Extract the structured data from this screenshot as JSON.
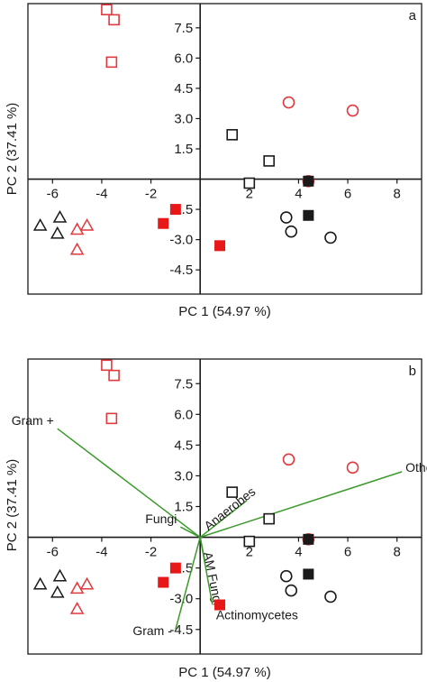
{
  "chart_data": [
    {
      "type": "scatter",
      "panel_label": "a",
      "xlabel": "PC 1 (54.97 %)",
      "ylabel": "PC 2 (37.41 %)",
      "xlim": [
        -7.0,
        9.0
      ],
      "ylim": [
        -5.7,
        8.7
      ],
      "xticks": [
        -6,
        -4,
        -2,
        2,
        4,
        6,
        8
      ],
      "yticks": [
        7.5,
        6.0,
        4.5,
        3.0,
        1.5,
        -1.5,
        -3.0,
        -4.5
      ],
      "xtick_labels": [
        "-6",
        "-4",
        "-2",
        "2",
        "4",
        "6",
        "8"
      ],
      "ytick_labels": [
        "7.5",
        "6.0",
        "4.5",
        "3.0",
        "1.5",
        "-1.5",
        "-3.0",
        "-4.5"
      ],
      "grid": false,
      "series": [
        {
          "marker": "square-open",
          "color": "#e0393e",
          "points": [
            [
              -3.8,
              8.4
            ],
            [
              -3.5,
              7.9
            ],
            [
              -3.6,
              5.8
            ]
          ]
        },
        {
          "marker": "circle-open",
          "color": "#e0393e",
          "points": [
            [
              3.6,
              3.8
            ],
            [
              6.2,
              3.4
            ],
            [
              4.4,
              -0.1
            ]
          ]
        },
        {
          "marker": "square-open",
          "color": "#1a1a1a",
          "points": [
            [
              1.3,
              2.2
            ],
            [
              2.8,
              0.9
            ],
            [
              2.0,
              -0.2
            ]
          ]
        },
        {
          "marker": "square-filled",
          "color": "#1a1a1a",
          "points": [
            [
              4.4,
              -0.1
            ],
            [
              4.4,
              -1.8
            ]
          ]
        },
        {
          "marker": "square-filled",
          "color": "#e81818",
          "points": [
            [
              -1.0,
              -1.5
            ],
            [
              -1.5,
              -2.2
            ],
            [
              0.8,
              -3.3
            ]
          ]
        },
        {
          "marker": "circle-open",
          "color": "#1a1a1a",
          "points": [
            [
              3.5,
              -1.9
            ],
            [
              3.7,
              -2.6
            ],
            [
              5.3,
              -2.9
            ]
          ]
        },
        {
          "marker": "triangle-open",
          "color": "#1a1a1a",
          "points": [
            [
              -6.5,
              -2.3
            ],
            [
              -5.7,
              -1.9
            ],
            [
              -5.8,
              -2.7
            ]
          ]
        },
        {
          "marker": "triangle-open",
          "color": "#e0393e",
          "points": [
            [
              -5.0,
              -2.5
            ],
            [
              -4.6,
              -2.3
            ],
            [
              -5.0,
              -3.5
            ]
          ]
        }
      ]
    },
    {
      "type": "scatter",
      "panel_label": "b",
      "xlabel": "PC 1 (54.97 %)",
      "ylabel": "PC 2 (37.41 %)",
      "xlim": [
        -7.0,
        9.0
      ],
      "ylim": [
        -5.7,
        8.7
      ],
      "xticks": [
        -6,
        -4,
        -2,
        2,
        4,
        6,
        8
      ],
      "yticks": [
        7.5,
        6.0,
        4.5,
        3.0,
        1.5,
        -1.5,
        -3.0,
        -4.5
      ],
      "xtick_labels": [
        "-6",
        "-4",
        "-2",
        "2",
        "4",
        "6",
        "8"
      ],
      "ytick_labels": [
        "7.5",
        "6.0",
        "4.5",
        "3.0",
        "1.5",
        "-1.5",
        "-3.0",
        "-4.5"
      ],
      "grid": false,
      "series": [
        {
          "marker": "square-open",
          "color": "#e0393e",
          "points": [
            [
              -3.8,
              8.4
            ],
            [
              -3.5,
              7.9
            ],
            [
              -3.6,
              5.8
            ]
          ]
        },
        {
          "marker": "circle-open",
          "color": "#e0393e",
          "points": [
            [
              3.6,
              3.8
            ],
            [
              6.2,
              3.4
            ],
            [
              4.4,
              -0.1
            ]
          ]
        },
        {
          "marker": "square-open",
          "color": "#1a1a1a",
          "points": [
            [
              1.3,
              2.2
            ],
            [
              2.8,
              0.9
            ],
            [
              2.0,
              -0.2
            ]
          ]
        },
        {
          "marker": "square-filled",
          "color": "#1a1a1a",
          "points": [
            [
              4.4,
              -0.1
            ],
            [
              4.4,
              -1.8
            ]
          ]
        },
        {
          "marker": "square-filled",
          "color": "#e81818",
          "points": [
            [
              -1.0,
              -1.5
            ],
            [
              -1.5,
              -2.2
            ],
            [
              0.8,
              -3.3
            ]
          ]
        },
        {
          "marker": "circle-open",
          "color": "#1a1a1a",
          "points": [
            [
              3.5,
              -1.9
            ],
            [
              3.7,
              -2.6
            ],
            [
              5.3,
              -2.9
            ]
          ]
        },
        {
          "marker": "triangle-open",
          "color": "#1a1a1a",
          "points": [
            [
              -6.5,
              -2.3
            ],
            [
              -5.7,
              -1.9
            ],
            [
              -5.8,
              -2.7
            ]
          ]
        },
        {
          "marker": "triangle-open",
          "color": "#e0393e",
          "points": [
            [
              -5.0,
              -2.5
            ],
            [
              -4.6,
              -2.3
            ],
            [
              -5.0,
              -3.5
            ]
          ]
        }
      ],
      "vectors": [
        {
          "label": "Gram +",
          "x": -5.8,
          "y": 5.3,
          "label_anchor": "end"
        },
        {
          "label": "Others",
          "x": 8.2,
          "y": 3.2,
          "label_anchor": "start"
        },
        {
          "label": "Anaerobes",
          "x": 1.9,
          "y": 1.8,
          "label_anchor": "rotated"
        },
        {
          "label": "Fungi",
          "x": -0.8,
          "y": 0.5,
          "label_anchor": "end"
        },
        {
          "label": "AM Fungi",
          "x": 0.2,
          "y": -1.2,
          "label_anchor": "rotated"
        },
        {
          "label": "Actinomycetes",
          "x": 0.5,
          "y": -3.3,
          "label_anchor": "start"
        },
        {
          "label": "Gram -",
          "x": -1.0,
          "y": -4.5,
          "label_anchor": "end"
        }
      ],
      "vector_color": "#3a9a2a"
    }
  ]
}
